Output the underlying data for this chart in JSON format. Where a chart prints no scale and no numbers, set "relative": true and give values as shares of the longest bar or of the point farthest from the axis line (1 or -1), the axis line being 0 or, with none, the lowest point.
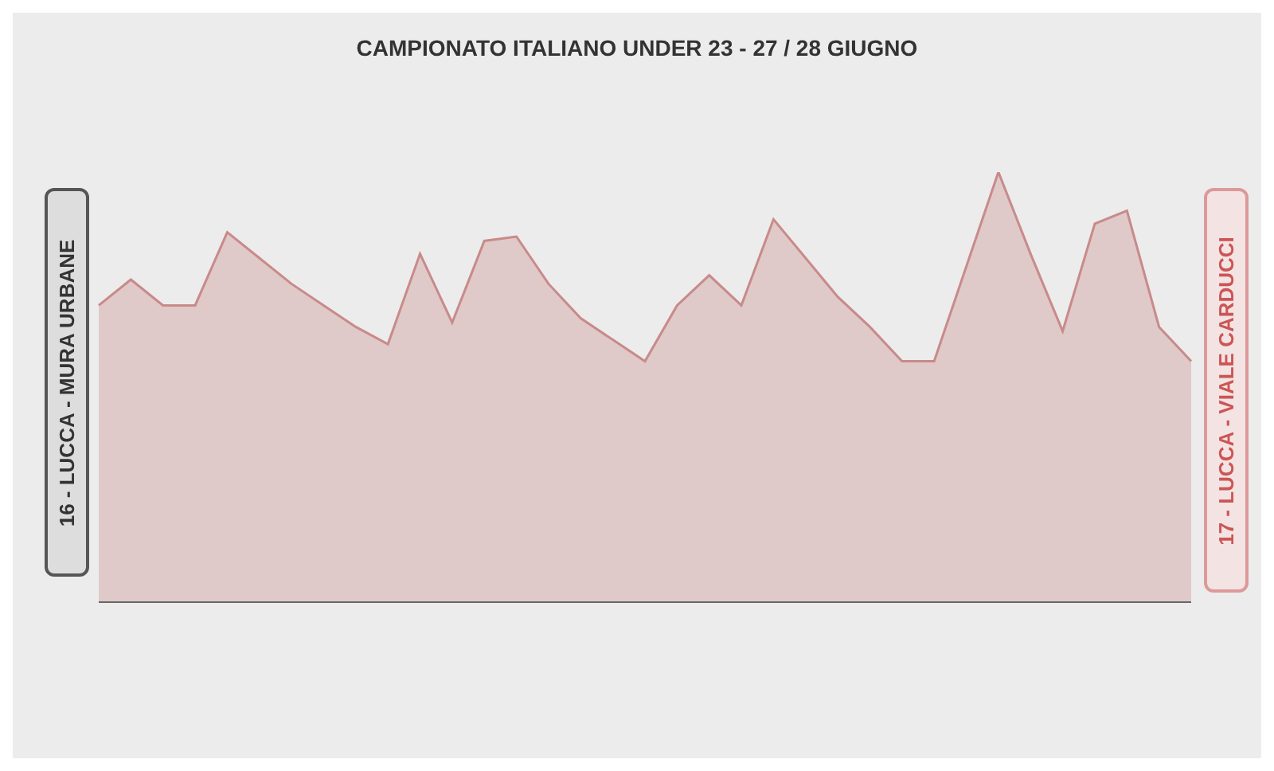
{
  "chart_data": {
    "type": "area",
    "title": "CAMPIONATO ITALIANO UNDER 23 - 27 / 28 GIUGNO",
    "relative": true,
    "categories": [
      null,
      null,
      null,
      null,
      null,
      null,
      null,
      null,
      null,
      null,
      null,
      null,
      null,
      null,
      null,
      null,
      null,
      null,
      null,
      null,
      null,
      null,
      null,
      null,
      null,
      null,
      null,
      null,
      null,
      null,
      null,
      null,
      null,
      null,
      null
    ],
    "series": [
      {
        "color": "#c98a8a",
        "values": [
          0.69,
          0.75,
          0.69,
          0.69,
          0.86,
          0.8,
          0.74,
          0.69,
          0.64,
          0.6,
          0.81,
          0.65,
          0.84,
          0.85,
          0.74,
          0.66,
          0.61,
          0.56,
          0.69,
          0.76,
          0.69,
          0.89,
          0.8,
          0.71,
          0.64,
          0.56,
          0.56,
          0.78,
          1,
          0.81,
          0.63,
          0.88,
          0.91,
          0.64,
          0.56
        ]
      }
    ],
    "annotations": [
      "16 - LUCCA - MURA URBANE",
      "17 - LUCCA - VIALE CARDUCCI"
    ]
  }
}
